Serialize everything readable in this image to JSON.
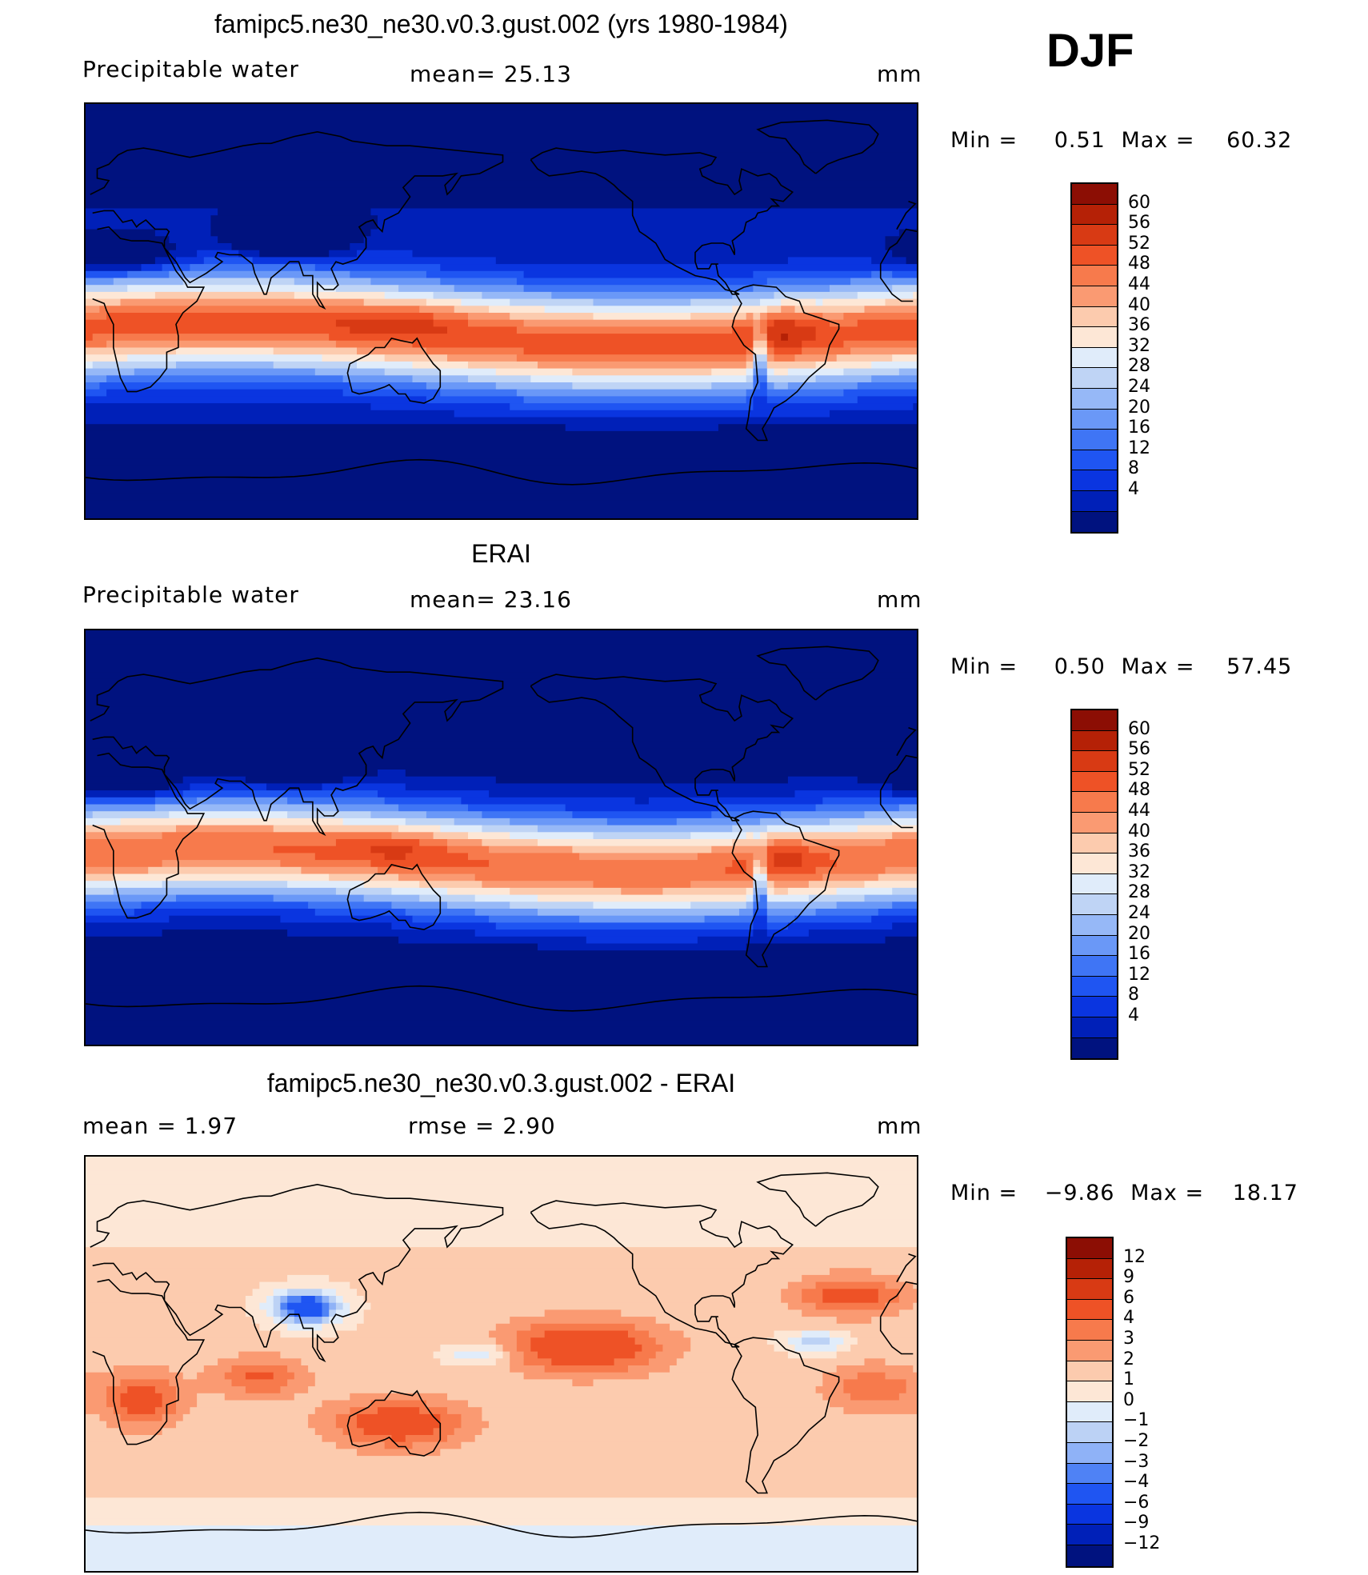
{
  "season": "DJF",
  "palette_abs": [
    "#00127f",
    "#0020b8",
    "#0a35e0",
    "#1f55f2",
    "#3f75f5",
    "#6a98f7",
    "#96b8f7",
    "#bfd4f5",
    "#e0ecfa",
    "#fde7d6",
    "#fccbae",
    "#fa9a72",
    "#f77a4c",
    "#ee5226",
    "#d83a14",
    "#b52106",
    "#8c0e04"
  ],
  "palette_diff": [
    "#00127f",
    "#0020b8",
    "#0a35e0",
    "#1f55f2",
    "#4f82f5",
    "#8fb2f7",
    "#bcd2f5",
    "#e0ecfa",
    "#fde7d6",
    "#fccbae",
    "#fa9a72",
    "#f77a4c",
    "#ee5226",
    "#d83a14",
    "#b52106",
    "#8c0e04"
  ],
  "panels": [
    {
      "title": "famipc5.ne30_ne30.v0.3.gust.002 (yrs 1980-1984)",
      "left_label": "Precipitable  water",
      "mid_label": "mean=   25.13",
      "units": "mm",
      "min_label": "Min  =",
      "min_value": "0.51",
      "max_label": "Max  =",
      "max_value": "60.32",
      "colorbar_ticks": [
        "60",
        "56",
        "52",
        "48",
        "44",
        "40",
        "36",
        "32",
        "28",
        "24",
        "20",
        "16",
        "12",
        "8",
        "4"
      ]
    },
    {
      "title": "ERAI",
      "left_label": "Precipitable  water",
      "mid_label": "mean=   23.16",
      "units": "mm",
      "min_label": "Min  =",
      "min_value": "0.50",
      "max_label": "Max  =",
      "max_value": "57.45",
      "colorbar_ticks": [
        "60",
        "56",
        "52",
        "48",
        "44",
        "40",
        "36",
        "32",
        "28",
        "24",
        "20",
        "16",
        "12",
        "8",
        "4"
      ]
    },
    {
      "title": "famipc5.ne30_ne30.v0.3.gust.002 - ERAI",
      "left_label": "mean  =      1.97",
      "mid_label": "rmse  =      2.90",
      "units": "mm",
      "min_label": "Min  =",
      "min_value": "−9.86",
      "max_label": "Max  =",
      "max_value": "18.17",
      "colorbar_ticks": [
        "12",
        "9",
        "6",
        "4",
        "3",
        "2",
        "1",
        "0",
        "−1",
        "−2",
        "−3",
        "−4",
        "−6",
        "−9",
        "−12"
      ]
    }
  ]
}
